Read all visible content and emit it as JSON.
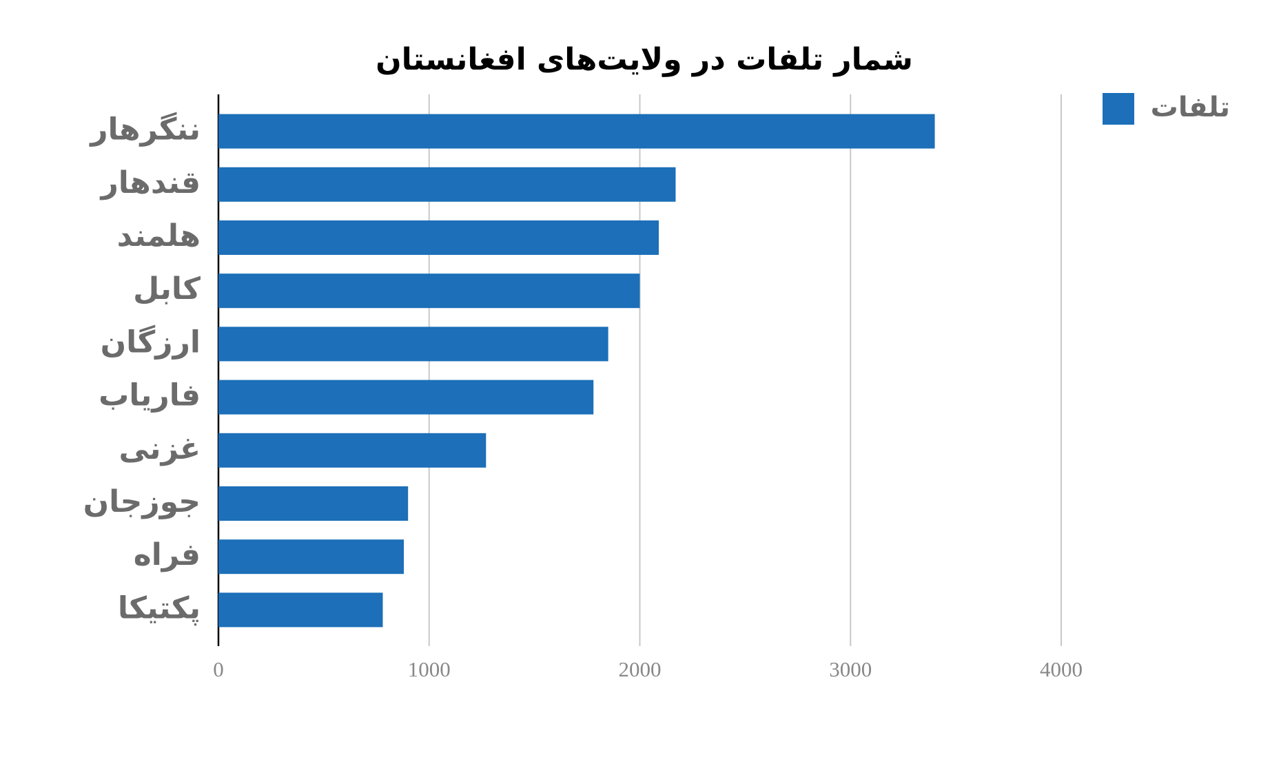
{
  "chart_data": {
    "type": "bar",
    "orientation": "horizontal",
    "title": "شمار تلفات در ولایت‌های افغانستان",
    "categories": [
      "ننگرهار",
      "قندهار",
      "هلمند",
      "کابل",
      "ارزگان",
      "فاریاب",
      "غزنی",
      "جوزجان",
      "فراه",
      "پکتیکا"
    ],
    "series": [
      {
        "name": "تلفات",
        "color": "#1c6fb8",
        "values": [
          3400,
          2170,
          2090,
          2000,
          1850,
          1780,
          1270,
          900,
          880,
          780
        ]
      }
    ],
    "xlim": [
      0,
      4000
    ],
    "xticks": [
      0,
      1000,
      2000,
      3000,
      4000
    ],
    "grid": true,
    "legend": "top-right"
  }
}
